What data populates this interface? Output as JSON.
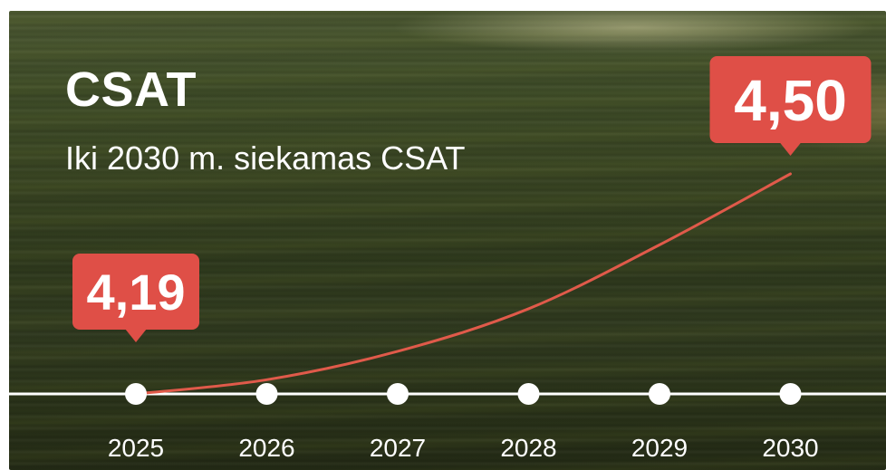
{
  "header": {
    "title": "CSAT",
    "subtitle": "Iki 2030 m. siekamas CSAT"
  },
  "colors": {
    "accent": "#df4f47",
    "line": "#e05a4a",
    "axis": "#ffffff",
    "text": "#ffffff"
  },
  "chart_data": {
    "type": "line",
    "title": "CSAT",
    "subtitle": "Iki 2030 m. siekamas CSAT",
    "categories": [
      "2025",
      "2026",
      "2027",
      "2028",
      "2029",
      "2030"
    ],
    "series": [
      {
        "values": [
          4.19,
          4.21,
          4.25,
          4.31,
          4.4,
          4.5
        ]
      }
    ],
    "data_labels": [
      {
        "category": "2025",
        "text": "4,19"
      },
      {
        "category": "2030",
        "text": "4,50"
      }
    ],
    "ylim": [
      4.19,
      4.5
    ],
    "grid": false,
    "legend": "none"
  }
}
